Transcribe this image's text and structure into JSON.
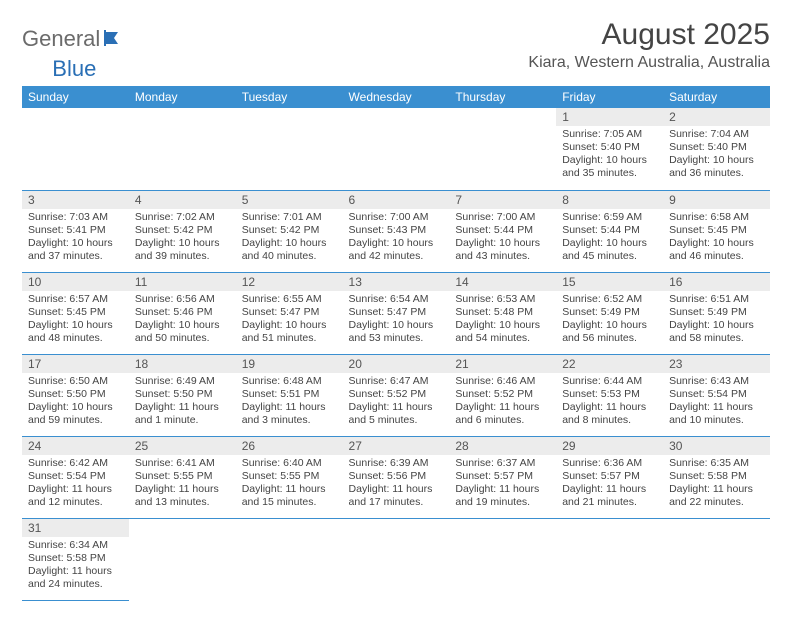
{
  "logo": {
    "text1": "General",
    "text2": "Blue"
  },
  "header": {
    "month_title": "August 2025",
    "location": "Kiara, Western Australia, Australia"
  },
  "calendar": {
    "header_bg": "#3a8fd0",
    "daynum_bg": "#ececec",
    "border_color": "#3a8fd0",
    "weekdays": [
      "Sunday",
      "Monday",
      "Tuesday",
      "Wednesday",
      "Thursday",
      "Friday",
      "Saturday"
    ],
    "weeks": [
      [
        null,
        null,
        null,
        null,
        null,
        {
          "day": "1",
          "sunrise": "Sunrise: 7:05 AM",
          "sunset": "Sunset: 5:40 PM",
          "daylight": "Daylight: 10 hours and 35 minutes."
        },
        {
          "day": "2",
          "sunrise": "Sunrise: 7:04 AM",
          "sunset": "Sunset: 5:40 PM",
          "daylight": "Daylight: 10 hours and 36 minutes."
        }
      ],
      [
        {
          "day": "3",
          "sunrise": "Sunrise: 7:03 AM",
          "sunset": "Sunset: 5:41 PM",
          "daylight": "Daylight: 10 hours and 37 minutes."
        },
        {
          "day": "4",
          "sunrise": "Sunrise: 7:02 AM",
          "sunset": "Sunset: 5:42 PM",
          "daylight": "Daylight: 10 hours and 39 minutes."
        },
        {
          "day": "5",
          "sunrise": "Sunrise: 7:01 AM",
          "sunset": "Sunset: 5:42 PM",
          "daylight": "Daylight: 10 hours and 40 minutes."
        },
        {
          "day": "6",
          "sunrise": "Sunrise: 7:00 AM",
          "sunset": "Sunset: 5:43 PM",
          "daylight": "Daylight: 10 hours and 42 minutes."
        },
        {
          "day": "7",
          "sunrise": "Sunrise: 7:00 AM",
          "sunset": "Sunset: 5:44 PM",
          "daylight": "Daylight: 10 hours and 43 minutes."
        },
        {
          "day": "8",
          "sunrise": "Sunrise: 6:59 AM",
          "sunset": "Sunset: 5:44 PM",
          "daylight": "Daylight: 10 hours and 45 minutes."
        },
        {
          "day": "9",
          "sunrise": "Sunrise: 6:58 AM",
          "sunset": "Sunset: 5:45 PM",
          "daylight": "Daylight: 10 hours and 46 minutes."
        }
      ],
      [
        {
          "day": "10",
          "sunrise": "Sunrise: 6:57 AM",
          "sunset": "Sunset: 5:45 PM",
          "daylight": "Daylight: 10 hours and 48 minutes."
        },
        {
          "day": "11",
          "sunrise": "Sunrise: 6:56 AM",
          "sunset": "Sunset: 5:46 PM",
          "daylight": "Daylight: 10 hours and 50 minutes."
        },
        {
          "day": "12",
          "sunrise": "Sunrise: 6:55 AM",
          "sunset": "Sunset: 5:47 PM",
          "daylight": "Daylight: 10 hours and 51 minutes."
        },
        {
          "day": "13",
          "sunrise": "Sunrise: 6:54 AM",
          "sunset": "Sunset: 5:47 PM",
          "daylight": "Daylight: 10 hours and 53 minutes."
        },
        {
          "day": "14",
          "sunrise": "Sunrise: 6:53 AM",
          "sunset": "Sunset: 5:48 PM",
          "daylight": "Daylight: 10 hours and 54 minutes."
        },
        {
          "day": "15",
          "sunrise": "Sunrise: 6:52 AM",
          "sunset": "Sunset: 5:49 PM",
          "daylight": "Daylight: 10 hours and 56 minutes."
        },
        {
          "day": "16",
          "sunrise": "Sunrise: 6:51 AM",
          "sunset": "Sunset: 5:49 PM",
          "daylight": "Daylight: 10 hours and 58 minutes."
        }
      ],
      [
        {
          "day": "17",
          "sunrise": "Sunrise: 6:50 AM",
          "sunset": "Sunset: 5:50 PM",
          "daylight": "Daylight: 10 hours and 59 minutes."
        },
        {
          "day": "18",
          "sunrise": "Sunrise: 6:49 AM",
          "sunset": "Sunset: 5:50 PM",
          "daylight": "Daylight: 11 hours and 1 minute."
        },
        {
          "day": "19",
          "sunrise": "Sunrise: 6:48 AM",
          "sunset": "Sunset: 5:51 PM",
          "daylight": "Daylight: 11 hours and 3 minutes."
        },
        {
          "day": "20",
          "sunrise": "Sunrise: 6:47 AM",
          "sunset": "Sunset: 5:52 PM",
          "daylight": "Daylight: 11 hours and 5 minutes."
        },
        {
          "day": "21",
          "sunrise": "Sunrise: 6:46 AM",
          "sunset": "Sunset: 5:52 PM",
          "daylight": "Daylight: 11 hours and 6 minutes."
        },
        {
          "day": "22",
          "sunrise": "Sunrise: 6:44 AM",
          "sunset": "Sunset: 5:53 PM",
          "daylight": "Daylight: 11 hours and 8 minutes."
        },
        {
          "day": "23",
          "sunrise": "Sunrise: 6:43 AM",
          "sunset": "Sunset: 5:54 PM",
          "daylight": "Daylight: 11 hours and 10 minutes."
        }
      ],
      [
        {
          "day": "24",
          "sunrise": "Sunrise: 6:42 AM",
          "sunset": "Sunset: 5:54 PM",
          "daylight": "Daylight: 11 hours and 12 minutes."
        },
        {
          "day": "25",
          "sunrise": "Sunrise: 6:41 AM",
          "sunset": "Sunset: 5:55 PM",
          "daylight": "Daylight: 11 hours and 13 minutes."
        },
        {
          "day": "26",
          "sunrise": "Sunrise: 6:40 AM",
          "sunset": "Sunset: 5:55 PM",
          "daylight": "Daylight: 11 hours and 15 minutes."
        },
        {
          "day": "27",
          "sunrise": "Sunrise: 6:39 AM",
          "sunset": "Sunset: 5:56 PM",
          "daylight": "Daylight: 11 hours and 17 minutes."
        },
        {
          "day": "28",
          "sunrise": "Sunrise: 6:37 AM",
          "sunset": "Sunset: 5:57 PM",
          "daylight": "Daylight: 11 hours and 19 minutes."
        },
        {
          "day": "29",
          "sunrise": "Sunrise: 6:36 AM",
          "sunset": "Sunset: 5:57 PM",
          "daylight": "Daylight: 11 hours and 21 minutes."
        },
        {
          "day": "30",
          "sunrise": "Sunrise: 6:35 AM",
          "sunset": "Sunset: 5:58 PM",
          "daylight": "Daylight: 11 hours and 22 minutes."
        }
      ],
      [
        {
          "day": "31",
          "sunrise": "Sunrise: 6:34 AM",
          "sunset": "Sunset: 5:58 PM",
          "daylight": "Daylight: 11 hours and 24 minutes."
        },
        null,
        null,
        null,
        null,
        null,
        null
      ]
    ]
  }
}
